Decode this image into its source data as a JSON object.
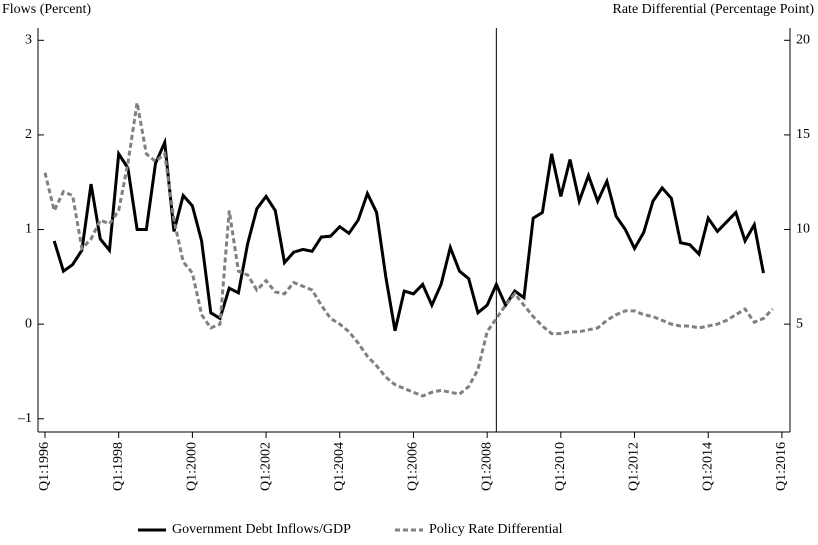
{
  "chart_data": {
    "type": "line",
    "y_label": "Flows (Percent)",
    "y2_label": "Rate Differential (Percentage Point)",
    "xlim": [
      1995.81,
      2016.22
    ],
    "xticks": [
      {
        "value": 1996,
        "label": "Q1:1996"
      },
      {
        "value": 1998,
        "label": "Q1:1998"
      },
      {
        "value": 2000,
        "label": "Q1:2000"
      },
      {
        "value": 2002,
        "label": "Q1:2002"
      },
      {
        "value": 2004,
        "label": "Q1:2004"
      },
      {
        "value": 2006,
        "label": "Q1:2006"
      },
      {
        "value": 2008,
        "label": "Q1:2008"
      },
      {
        "value": 2010,
        "label": "Q1:2010"
      },
      {
        "value": 2012,
        "label": "Q1:2012"
      },
      {
        "value": 2014,
        "label": "Q1:2014"
      },
      {
        "value": 2016,
        "label": "Q1:2016"
      }
    ],
    "ylim": [
      -1.14,
      3.13
    ],
    "yticks": [
      {
        "value": -1,
        "label": "–1"
      },
      0,
      1,
      2,
      3
    ],
    "y2lim": [
      -0.7,
      20.65
    ],
    "y2ticks": [
      5,
      10,
      15,
      20
    ],
    "vline": 2008.25,
    "series": [
      {
        "name": "Government Debt Inflows/GDP",
        "color": "#000000",
        "dash": false,
        "x": [
          1996.25,
          1996.5,
          1996.75,
          1997,
          1997.25,
          1997.5,
          1997.75,
          1998,
          1998.25,
          1998.5,
          1998.75,
          1999,
          1999.25,
          1999.5,
          1999.75,
          2000,
          2000.25,
          2000.5,
          2000.75,
          2001,
          2001.25,
          2001.5,
          2001.75,
          2002,
          2002.25,
          2002.5,
          2002.75,
          2003,
          2003.25,
          2003.5,
          2003.75,
          2004,
          2004.25,
          2004.5,
          2004.75,
          2005,
          2005.25,
          2005.5,
          2005.75,
          2006,
          2006.25,
          2006.5,
          2006.75,
          2007,
          2007.25,
          2007.5,
          2007.75,
          2008,
          2008.25,
          2008.5,
          2008.75,
          2009,
          2009.25,
          2009.5,
          2009.75,
          2010,
          2010.25,
          2010.5,
          2010.75,
          2011,
          2011.25,
          2011.5,
          2011.75,
          2012,
          2012.25,
          2012.5,
          2012.75,
          2013,
          2013.25,
          2013.5,
          2013.75,
          2014,
          2014.25,
          2014.5,
          2014.75,
          2015,
          2015.25,
          2015.5
        ],
        "values": [
          0.88,
          0.56,
          0.63,
          0.78,
          1.48,
          0.9,
          0.78,
          1.8,
          1.65,
          1.0,
          1.0,
          1.7,
          1.92,
          0.98,
          1.36,
          1.25,
          0.88,
          0.12,
          0.06,
          0.38,
          0.33,
          0.85,
          1.22,
          1.35,
          1.2,
          0.65,
          0.76,
          0.79,
          0.77,
          0.92,
          0.93,
          1.03,
          0.96,
          1.1,
          1.38,
          1.18,
          0.5,
          -0.07,
          0.35,
          0.32,
          0.42,
          0.2,
          0.42,
          0.81,
          0.56,
          0.48,
          0.12,
          0.2,
          0.42,
          0.2,
          0.35,
          0.28,
          1.12,
          1.18,
          1.8,
          1.35,
          1.74,
          1.3,
          1.57,
          1.3,
          1.51,
          1.14,
          1.0,
          0.8,
          0.97,
          1.3,
          1.44,
          1.33,
          0.86,
          0.84,
          0.74,
          1.12,
          0.98,
          1.08,
          1.18,
          0.88,
          1.05,
          0.54
        ]
      },
      {
        "name": "Policy Rate Differential",
        "color": "#808080",
        "dash": true,
        "axis": "y2",
        "x": [
          1996,
          1996.25,
          1996.5,
          1996.75,
          1997,
          1997.25,
          1997.5,
          1997.75,
          1998,
          1998.25,
          1998.5,
          1998.75,
          1999,
          1999.25,
          1999.5,
          1999.75,
          2000,
          2000.25,
          2000.5,
          2000.75,
          2001,
          2001.25,
          2001.5,
          2001.75,
          2002,
          2002.25,
          2002.5,
          2002.75,
          2003,
          2003.25,
          2003.5,
          2003.75,
          2004,
          2004.25,
          2004.5,
          2004.75,
          2005,
          2005.25,
          2005.5,
          2005.75,
          2006,
          2006.25,
          2006.5,
          2006.75,
          2007,
          2007.25,
          2007.5,
          2007.75,
          2008,
          2008.25,
          2008.5,
          2008.75,
          2009,
          2009.25,
          2009.5,
          2009.75,
          2010,
          2010.25,
          2010.5,
          2010.75,
          2011,
          2011.25,
          2011.5,
          2011.75,
          2012,
          2012.25,
          2012.5,
          2012.75,
          2013,
          2013.25,
          2013.5,
          2013.75,
          2014,
          2014.25,
          2014.5,
          2014.75,
          2015,
          2015.25,
          2015.5,
          2015.75
        ],
        "values": [
          13.0,
          11.0,
          12.0,
          11.8,
          9.0,
          9.5,
          10.5,
          10.3,
          11.0,
          13.5,
          16.7,
          14.0,
          13.6,
          14.0,
          10.5,
          8.3,
          7.7,
          5.5,
          4.8,
          5.0,
          11.0,
          7.8,
          7.6,
          6.8,
          7.3,
          6.7,
          6.6,
          7.2,
          7.0,
          6.8,
          6.0,
          5.3,
          5.0,
          4.6,
          4.0,
          3.3,
          2.8,
          2.2,
          1.8,
          1.6,
          1.4,
          1.2,
          1.4,
          1.5,
          1.4,
          1.3,
          1.7,
          2.6,
          4.6,
          5.3,
          6.0,
          6.6,
          6.0,
          5.4,
          4.9,
          4.5,
          4.5,
          4.6,
          4.6,
          4.7,
          4.8,
          5.2,
          5.5,
          5.7,
          5.7,
          5.5,
          5.4,
          5.2,
          5.0,
          4.9,
          4.9,
          4.8,
          4.9,
          5.0,
          5.2,
          5.5,
          5.8,
          5.1,
          5.3,
          5.8
        ]
      }
    ]
  }
}
